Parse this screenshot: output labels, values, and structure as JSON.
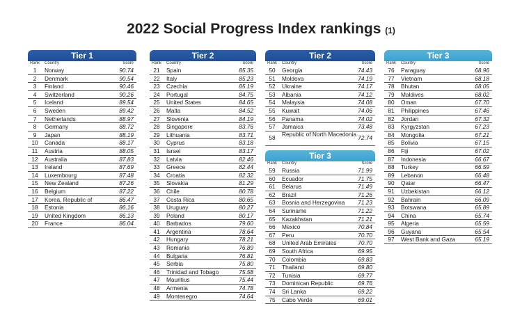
{
  "title": "2022 Social Progress Index rankings",
  "title_note": "(1)",
  "columns": {
    "rank": "Rank",
    "country": "Country",
    "score": "Score"
  },
  "tiers": [
    {
      "label": "Tier 1",
      "rows": [
        [
          "1",
          "Norway",
          "90.74"
        ],
        [
          "2",
          "Denmark",
          "90.54"
        ],
        [
          "3",
          "Finland",
          "90.46"
        ],
        [
          "4",
          "Switzerland",
          "90.26"
        ],
        [
          "5",
          "Iceland",
          "89.54"
        ],
        [
          "6",
          "Sweden",
          "89.42"
        ],
        [
          "7",
          "Netherlands",
          "88.97"
        ],
        [
          "8",
          "Germany",
          "88.72"
        ],
        [
          "9",
          "Japan",
          "88.19"
        ],
        [
          "10",
          "Canada",
          "88.17"
        ],
        [
          "11",
          "Austria",
          "88.05"
        ],
        [
          "12",
          "Australia",
          "87.83"
        ],
        [
          "13",
          "Ireland",
          "87.69"
        ],
        [
          "14",
          "Luxembourg",
          "87.48"
        ],
        [
          "15",
          "New Zealand",
          "87.26"
        ],
        [
          "16",
          "Belgium",
          "87.22"
        ],
        [
          "17",
          "Korea, Republic of",
          "86.47"
        ],
        [
          "18",
          "Estonia",
          "86.16"
        ],
        [
          "19",
          "United Kingdom",
          "86.13"
        ],
        [
          "20",
          "France",
          "86.04"
        ]
      ]
    },
    {
      "label": "Tier 2",
      "rows": [
        [
          "21",
          "Spain",
          "85.35"
        ],
        [
          "22",
          "Italy",
          "85.23"
        ],
        [
          "23",
          "Czechia",
          "85.19"
        ],
        [
          "24",
          "Portugal",
          "84.75"
        ],
        [
          "25",
          "United States",
          "84.65"
        ],
        [
          "26",
          "Malta",
          "84.52"
        ],
        [
          "27",
          "Slovenia",
          "84.19"
        ],
        [
          "28",
          "Singapore",
          "83.76"
        ],
        [
          "29",
          "Lithuania",
          "83.71"
        ],
        [
          "30",
          "Cyprus",
          "83.18"
        ],
        [
          "31",
          "Israel",
          "83.17"
        ],
        [
          "32",
          "Latvia",
          "82.46"
        ],
        [
          "33",
          "Greece",
          "82.44"
        ],
        [
          "34",
          "Croatia",
          "82.32"
        ],
        [
          "35",
          "Slovakia",
          "81.29"
        ],
        [
          "36",
          "Chile",
          "80.78"
        ],
        [
          "37",
          "Costa Rica",
          "80.65"
        ],
        [
          "38",
          "Uruguay",
          "80.27"
        ],
        [
          "39",
          "Poland",
          "80.17"
        ],
        [
          "40",
          "Barbados",
          "79.60"
        ],
        [
          "41",
          "Argentina",
          "78.64"
        ],
        [
          "42",
          "Hungary",
          "78.21"
        ],
        [
          "43",
          "Romania",
          "76.89"
        ],
        [
          "44",
          "Bulgaria",
          "76.81"
        ],
        [
          "45",
          "Serbia",
          "75.80"
        ],
        [
          "46",
          "Trinidad and Tobago",
          "75.58"
        ],
        [
          "47",
          "Mauritius",
          "75.44"
        ],
        [
          "48",
          "Armenia",
          "74.78"
        ],
        [
          "49",
          "Montenegro",
          "74.64"
        ]
      ]
    },
    {
      "label": "Tier 2",
      "rows": [
        [
          "50",
          "Georgia",
          "74.43"
        ],
        [
          "51",
          "Moldova",
          "74.19"
        ],
        [
          "52",
          "Ukraine",
          "74.17"
        ],
        [
          "53",
          "Albania",
          "74.12"
        ],
        [
          "54",
          "Malaysia",
          "74.08"
        ],
        [
          "55",
          "Kuwait",
          "74.06"
        ],
        [
          "56",
          "Panama",
          "74.02"
        ],
        [
          "57",
          "Jamaica",
          "73.48"
        ],
        [
          "58",
          "Republic of North Macedonia",
          "72.74"
        ]
      ]
    },
    {
      "label": "Tier 3",
      "rows": [
        [
          "59",
          "Russia",
          "71.99"
        ],
        [
          "60",
          "Ecuador",
          "71.75"
        ],
        [
          "61",
          "Belarus",
          "71.49"
        ],
        [
          "62",
          "Brazil",
          "71.26"
        ],
        [
          "63",
          "Bosnia and Herzegovina",
          "71.23"
        ],
        [
          "64",
          "Suriname",
          "71.22"
        ],
        [
          "65",
          "Kazakhstan",
          "71.21"
        ],
        [
          "66",
          "Mexico",
          "70.84"
        ],
        [
          "67",
          "Peru",
          "70.70"
        ],
        [
          "68",
          "United Arab Emirates",
          "70.70"
        ],
        [
          "69",
          "South Africa",
          "69.95"
        ],
        [
          "70",
          "Colombia",
          "69.83"
        ],
        [
          "71",
          "Thailand",
          "69.80"
        ],
        [
          "72",
          "Tunisia",
          "69.77"
        ],
        [
          "73",
          "Dominican Republic",
          "69.76"
        ],
        [
          "74",
          "Sri Lanka",
          "69.22"
        ],
        [
          "75",
          "Cabo Verde",
          "69.01"
        ]
      ]
    },
    {
      "label": "Tier 3",
      "rows": [
        [
          "76",
          "Paraguay",
          "68.96"
        ],
        [
          "77",
          "Vietnam",
          "68.18"
        ],
        [
          "78",
          "Bhutan",
          "68.05"
        ],
        [
          "79",
          "Maldives",
          "68.02"
        ],
        [
          "80",
          "Oman",
          "67.70"
        ],
        [
          "81",
          "Philippines",
          "67.46"
        ],
        [
          "82",
          "Jordan",
          "67.32"
        ],
        [
          "83",
          "Kyrgyzstan",
          "67.23"
        ],
        [
          "84",
          "Mongolia",
          "67.21"
        ],
        [
          "85",
          "Bolivia",
          "67.15"
        ],
        [
          "86",
          "Fiji",
          "67.02"
        ],
        [
          "87",
          "Indonesia",
          "66.67"
        ],
        [
          "88",
          "Turkey",
          "66.59"
        ],
        [
          "89",
          "Lebanon",
          "66.48"
        ],
        [
          "90",
          "Qatar",
          "66.47"
        ],
        [
          "91",
          "Uzbekistan",
          "66.12"
        ],
        [
          "92",
          "Bahrain",
          "66.09"
        ],
        [
          "93",
          "Botswana",
          "65.89"
        ],
        [
          "94",
          "China",
          "65.74"
        ],
        [
          "95",
          "Algeria",
          "65.59"
        ],
        [
          "96",
          "Guyana",
          "65.54"
        ],
        [
          "97",
          "West Bank and Gaza",
          "65.19"
        ]
      ]
    }
  ]
}
